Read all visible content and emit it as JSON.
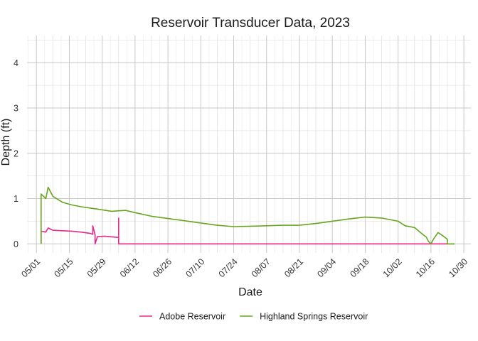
{
  "chart_data": {
    "type": "line",
    "title": "Reservoir Transducer Data, 2023",
    "xlabel": "Date",
    "ylabel": "Depth (ft)",
    "x_axis": {
      "type": "date",
      "range": [
        "2023-04-27",
        "2023-11-02"
      ],
      "ticks": [
        {
          "date": "2023-05-01",
          "label": "05/01"
        },
        {
          "date": "2023-05-15",
          "label": "05/15"
        },
        {
          "date": "2023-05-29",
          "label": "05/29"
        },
        {
          "date": "2023-06-12",
          "label": "06/12"
        },
        {
          "date": "2023-06-26",
          "label": "06/26"
        },
        {
          "date": "2023-07-10",
          "label": "07/10"
        },
        {
          "date": "2023-07-24",
          "label": "07/24"
        },
        {
          "date": "2023-08-07",
          "label": "08/07"
        },
        {
          "date": "2023-08-21",
          "label": "08/21"
        },
        {
          "date": "2023-09-04",
          "label": "09/04"
        },
        {
          "date": "2023-09-18",
          "label": "09/18"
        },
        {
          "date": "2023-10-02",
          "label": "10/02"
        },
        {
          "date": "2023-10-16",
          "label": "10/16"
        },
        {
          "date": "2023-10-30",
          "label": "10/30"
        }
      ]
    },
    "y_axis": {
      "range": [
        -0.2,
        4.6
      ],
      "ticks": [
        0,
        1,
        2,
        3,
        4
      ]
    },
    "grid": true,
    "legend_position": "bottom",
    "series": [
      {
        "name": "Adobe Reservoir",
        "color": "#e7298a",
        "points": [
          [
            "2023-05-03",
            0.0
          ],
          [
            "2023-05-03",
            0.28
          ],
          [
            "2023-05-05",
            0.26
          ],
          [
            "2023-05-06",
            0.35
          ],
          [
            "2023-05-08",
            0.3
          ],
          [
            "2023-05-12",
            0.29
          ],
          [
            "2023-05-16",
            0.28
          ],
          [
            "2023-05-20",
            0.26
          ],
          [
            "2023-05-24",
            0.23
          ],
          [
            "2023-05-25",
            0.21
          ],
          [
            "2023-05-25",
            0.4
          ],
          [
            "2023-05-26",
            0.2
          ],
          [
            "2023-05-26",
            0.0
          ],
          [
            "2023-05-27",
            0.16
          ],
          [
            "2023-05-30",
            0.17
          ],
          [
            "2023-06-03",
            0.15
          ],
          [
            "2023-06-05",
            0.14
          ],
          [
            "2023-06-05",
            0.57
          ],
          [
            "2023-06-05",
            0.0
          ],
          [
            "2023-10-26",
            0.0
          ]
        ]
      },
      {
        "name": "Highland Springs Reservoir",
        "color": "#66a61e",
        "points": [
          [
            "2023-05-03",
            0.0
          ],
          [
            "2023-05-03",
            1.1
          ],
          [
            "2023-05-05",
            1.0
          ],
          [
            "2023-05-06",
            1.25
          ],
          [
            "2023-05-08",
            1.05
          ],
          [
            "2023-05-12",
            0.92
          ],
          [
            "2023-05-16",
            0.86
          ],
          [
            "2023-05-20",
            0.82
          ],
          [
            "2023-05-24",
            0.79
          ],
          [
            "2023-05-28",
            0.76
          ],
          [
            "2023-06-02",
            0.72
          ],
          [
            "2023-06-08",
            0.74
          ],
          [
            "2023-06-12",
            0.69
          ],
          [
            "2023-06-19",
            0.61
          ],
          [
            "2023-06-26",
            0.56
          ],
          [
            "2023-07-03",
            0.51
          ],
          [
            "2023-07-10",
            0.46
          ],
          [
            "2023-07-17",
            0.41
          ],
          [
            "2023-07-24",
            0.38
          ],
          [
            "2023-07-31",
            0.39
          ],
          [
            "2023-08-07",
            0.4
          ],
          [
            "2023-08-14",
            0.41
          ],
          [
            "2023-08-21",
            0.41
          ],
          [
            "2023-08-28",
            0.45
          ],
          [
            "2023-09-04",
            0.5
          ],
          [
            "2023-09-11",
            0.55
          ],
          [
            "2023-09-18",
            0.59
          ],
          [
            "2023-09-25",
            0.57
          ],
          [
            "2023-10-02",
            0.5
          ],
          [
            "2023-10-05",
            0.4
          ],
          [
            "2023-10-09",
            0.36
          ],
          [
            "2023-10-12",
            0.23
          ],
          [
            "2023-10-14",
            0.15
          ],
          [
            "2023-10-15",
            0.05
          ],
          [
            "2023-10-16",
            0.0
          ],
          [
            "2023-10-17",
            0.1
          ],
          [
            "2023-10-19",
            0.25
          ],
          [
            "2023-10-21",
            0.18
          ],
          [
            "2023-10-23",
            0.1
          ],
          [
            "2023-10-23",
            0.0
          ],
          [
            "2023-10-26",
            0.0
          ]
        ]
      }
    ]
  }
}
